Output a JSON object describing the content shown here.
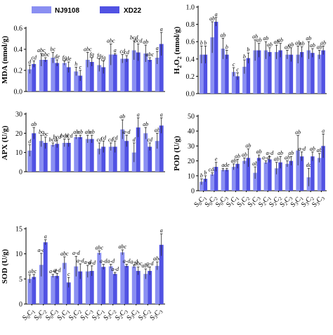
{
  "legend": [
    {
      "name": "NJ9108",
      "color": "#8a8ff2"
    },
    {
      "name": "XD22",
      "color": "#5152e3"
    }
  ],
  "colors": {
    "nj": "#8a8ff2",
    "xd": "#5152e3",
    "text": "#000000"
  },
  "categories": [
    "S0C1",
    "S0C2",
    "S0C3",
    "S1C1",
    "S1C2",
    "S1C3",
    "S2C1",
    "S2C2",
    "S2C3",
    "S3C1",
    "S3C2",
    "S3C3"
  ],
  "chart_data": [
    {
      "type": "bar",
      "id": "mda",
      "ylabel": "MDA (nmol/g)",
      "ylim": [
        0,
        0.6
      ],
      "yticks": [
        "0.0",
        "0.2",
        "0.4",
        "0.6"
      ],
      "series": [
        {
          "name": "NJ9108",
          "values": [
            0.21,
            0.3,
            0.32,
            0.27,
            0.19,
            0.3,
            0.25,
            0.35,
            0.31,
            0.39,
            0.36,
            0.32
          ],
          "errors": [
            0.04,
            0.06,
            0.05,
            0.02,
            0.04,
            0.07,
            0.06,
            0.1,
            0.04,
            0.09,
            0.08,
            0.06
          ],
          "letters": [
            "d",
            "abc",
            "bc",
            "fg",
            "h",
            "abc",
            "fg",
            "abc",
            "cd",
            "bcd",
            "ab",
            "a"
          ]
        },
        {
          "name": "XD22",
          "values": [
            0.26,
            0.3,
            0.27,
            0.23,
            0.15,
            0.28,
            0.23,
            0.35,
            0.31,
            0.37,
            0.3,
            0.45
          ],
          "errors": [
            0.03,
            0.02,
            0.03,
            0.05,
            0.05,
            0.04,
            0.06,
            0.01,
            0.03,
            0.08,
            0.02,
            0.11
          ],
          "letters": [
            "cd",
            "abc",
            "de",
            "de",
            "c",
            "fg",
            "fg",
            "a",
            "cd",
            "bcd",
            "abc",
            "a"
          ]
        }
      ]
    },
    {
      "type": "bar",
      "id": "h2o2",
      "ylabel": "H2O2 (nmol/g)",
      "ylim": [
        0,
        1.0
      ],
      "yticks": [
        "0.0",
        "0.2",
        "0.4",
        "0.6",
        "0.8",
        "1.0"
      ],
      "series": [
        {
          "name": "NJ9108",
          "values": [
            0.45,
            0.65,
            0.52,
            0.25,
            0.31,
            0.5,
            0.5,
            0.48,
            0.45,
            0.45,
            0.5,
            0.45
          ],
          "errors": [
            0.1,
            0.18,
            0.12,
            0.05,
            0.08,
            0.12,
            0.1,
            0.08,
            0.05,
            0.1,
            0.1,
            0.05
          ],
          "letters": [
            "b",
            "ab",
            "ab",
            "c",
            "b",
            "ab",
            "ab",
            "ab",
            "ab",
            "ab",
            "ab",
            "ab"
          ]
        },
        {
          "name": "XD22",
          "values": [
            0.45,
            0.83,
            0.45,
            0.2,
            0.41,
            0.5,
            0.48,
            0.5,
            0.45,
            0.48,
            0.47,
            0.5
          ],
          "errors": [
            0.1,
            0.05,
            0.05,
            0.04,
            0.06,
            0.08,
            0.05,
            0.08,
            0.08,
            0.06,
            0.05,
            0.05
          ],
          "letters": [
            "b",
            "a",
            "b",
            "c",
            "b",
            "ab",
            "ab",
            "ab",
            "ab",
            "ab",
            "ab",
            "ab"
          ]
        }
      ]
    },
    {
      "type": "bar",
      "id": "apx",
      "ylabel": "APX (U/g)",
      "ylim": [
        0,
        30
      ],
      "yticks": [
        "0",
        "10",
        "20",
        "30"
      ],
      "series": [
        {
          "name": "NJ9108",
          "values": [
            11,
            16,
            14,
            15,
            18,
            17,
            12,
            13,
            22,
            10,
            20,
            16
          ],
          "errors": [
            3,
            3,
            1,
            2,
            1,
            2,
            3,
            2,
            5,
            5,
            3,
            4
          ],
          "letters": [
            "d",
            "bc",
            "bcd",
            "bcd",
            "ab",
            "ab",
            "cd",
            "cd",
            "ab",
            "d",
            "ab",
            "ab"
          ]
        },
        {
          "name": "XD22",
          "values": [
            20,
            15,
            14.5,
            15,
            18,
            17,
            13,
            13,
            16,
            23,
            13,
            24
          ],
          "errors": [
            3,
            3,
            2,
            2,
            1,
            2,
            3,
            3,
            3,
            5,
            2,
            4
          ],
          "letters": [
            "ab",
            "bc",
            "bcd",
            "bcd",
            "ab",
            "ab",
            "cd",
            "cd",
            "a-d",
            "a",
            "cd",
            "a"
          ]
        }
      ]
    },
    {
      "type": "bar",
      "id": "pod",
      "ylabel": "POD (U/g)",
      "ylim": [
        0,
        50
      ],
      "yticks": [
        "0",
        "10",
        "20",
        "30",
        "40",
        "50"
      ],
      "series": [
        {
          "name": "NJ9108",
          "values": [
            6,
            11,
            14,
            16,
            20,
            12,
            19,
            15,
            18,
            27,
            9,
            22
          ],
          "errors": [
            2,
            1,
            1,
            2,
            2,
            4,
            1,
            4,
            2,
            10,
            6,
            3
          ],
          "letters": [
            "b",
            "cde",
            "a",
            "ab",
            "ab",
            "ab",
            "a-d",
            "ab",
            "ab",
            "ab",
            "dc",
            "ab"
          ]
        },
        {
          "name": "XD22",
          "values": [
            8,
            16,
            14,
            18,
            22,
            22,
            21,
            19,
            20,
            23,
            23,
            30
          ],
          "errors": [
            2,
            3,
            1,
            3,
            6,
            2,
            2,
            4,
            3,
            3,
            3,
            8
          ],
          "letters": [
            "b",
            "e",
            "de",
            "ab",
            "ab",
            "ab",
            "a-d",
            "ab",
            "ab",
            "a-d",
            "ab",
            "a"
          ]
        }
      ]
    },
    {
      "type": "bar",
      "id": "sod",
      "ylabel": "SOD (U/g)",
      "ylim": [
        0,
        15
      ],
      "yticks": [
        "0",
        "5",
        "10",
        "15"
      ],
      "series": [
        {
          "name": "NJ9108",
          "values": [
            5.0,
            7.8,
            5.6,
            8.2,
            7.5,
            6.5,
            10.2,
            7.5,
            10.3,
            7.5,
            6.0,
            7.6
          ],
          "errors": [
            0.8,
            2.3,
            0.3,
            1.2,
            2.0,
            1.2,
            0.4,
            0.4,
            0.5,
            0.3,
            1.0,
            0.8
          ],
          "letters": [
            "a",
            "a-d",
            "a-d",
            "abc",
            "a-d",
            "a-d",
            "abc",
            "a-d",
            "abc",
            "a-d",
            "abc",
            "abc"
          ]
        },
        {
          "name": "XD22",
          "values": [
            5.4,
            12.3,
            5.6,
            4.3,
            6.5,
            6.6,
            7.4,
            6.0,
            7.6,
            6.6,
            6.6,
            11.8
          ],
          "errors": [
            0.5,
            0.5,
            0.5,
            1.0,
            1.5,
            1.0,
            0.5,
            0.3,
            0.3,
            0.8,
            0.8,
            2.2
          ],
          "letters": [
            "bc",
            "a",
            "a-d",
            "c",
            "a-d",
            "a-d",
            "a-d",
            "a-d",
            "a-d",
            "abc",
            "a-d",
            "a"
          ]
        }
      ]
    }
  ]
}
